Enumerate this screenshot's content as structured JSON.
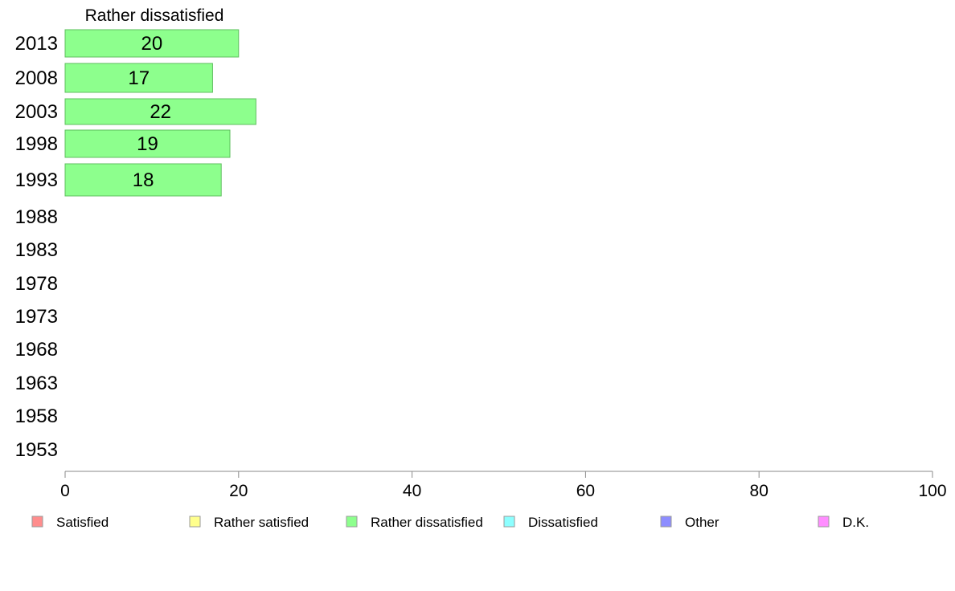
{
  "chart_data": {
    "type": "bar",
    "orientation": "horizontal",
    "title": "Rather dissatisfied",
    "categories": [
      "2013",
      "2008",
      "2003",
      "1998",
      "1993",
      "1988",
      "1983",
      "1978",
      "1973",
      "1968",
      "1963",
      "1958",
      "1953"
    ],
    "series": [
      {
        "name": "Rather dissatisfied",
        "color": "#8dff8d",
        "values": [
          20,
          17,
          22,
          19,
          18,
          null,
          null,
          null,
          null,
          null,
          null,
          null,
          null
        ],
        "data_labels": [
          "20",
          "17",
          "22",
          "19",
          "18",
          "",
          "",
          "",
          "",
          "",
          "",
          "",
          ""
        ]
      }
    ],
    "xlim": [
      0,
      100
    ],
    "xticks": [
      "0",
      "20",
      "40",
      "60",
      "80",
      "100"
    ],
    "grid": false,
    "legend_position": "bottom",
    "legend": [
      {
        "label": "Satisfied",
        "color": "#ff8d8d"
      },
      {
        "label": "Rather satisfied",
        "color": "#ffff8d"
      },
      {
        "label": "Rather dissatisfied",
        "color": "#8dff8d"
      },
      {
        "label": "Dissatisfied",
        "color": "#8dffff"
      },
      {
        "label": "Other",
        "color": "#8d8dff"
      },
      {
        "label": "D.K.",
        "color": "#ff8dff"
      }
    ]
  }
}
